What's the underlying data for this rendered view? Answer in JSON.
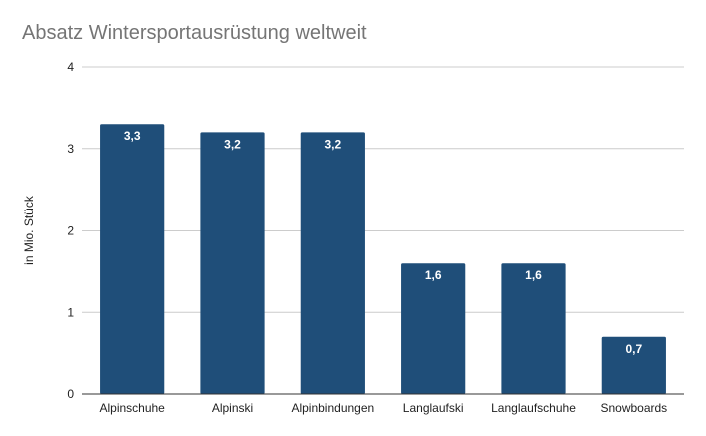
{
  "chart_data": {
    "type": "bar",
    "title": "Absatz Wintersportausrüstung weltweit",
    "xlabel": "",
    "ylabel": "in Mio. Stück",
    "categories": [
      "Alpinschuhe",
      "Alpinski",
      "Alpinbindungen",
      "Langlaufski",
      "Langlaufschuhe",
      "Snowboards"
    ],
    "series": [
      {
        "values": [
          3.3,
          3.2,
          3.2,
          1.6,
          1.6,
          0.7
        ]
      }
    ],
    "data_labels": [
      "3,3",
      "3,2",
      "3,2",
      "1,6",
      "1,6",
      "0,7"
    ],
    "ylim": [
      0,
      4
    ],
    "yticks": [
      "0",
      "1",
      "2",
      "3",
      "4"
    ],
    "grid": true,
    "legend": "none",
    "colors": {
      "bar": "#1f4e79",
      "grid": "#cccccc",
      "axis": "#333333",
      "title": "#757575"
    }
  }
}
